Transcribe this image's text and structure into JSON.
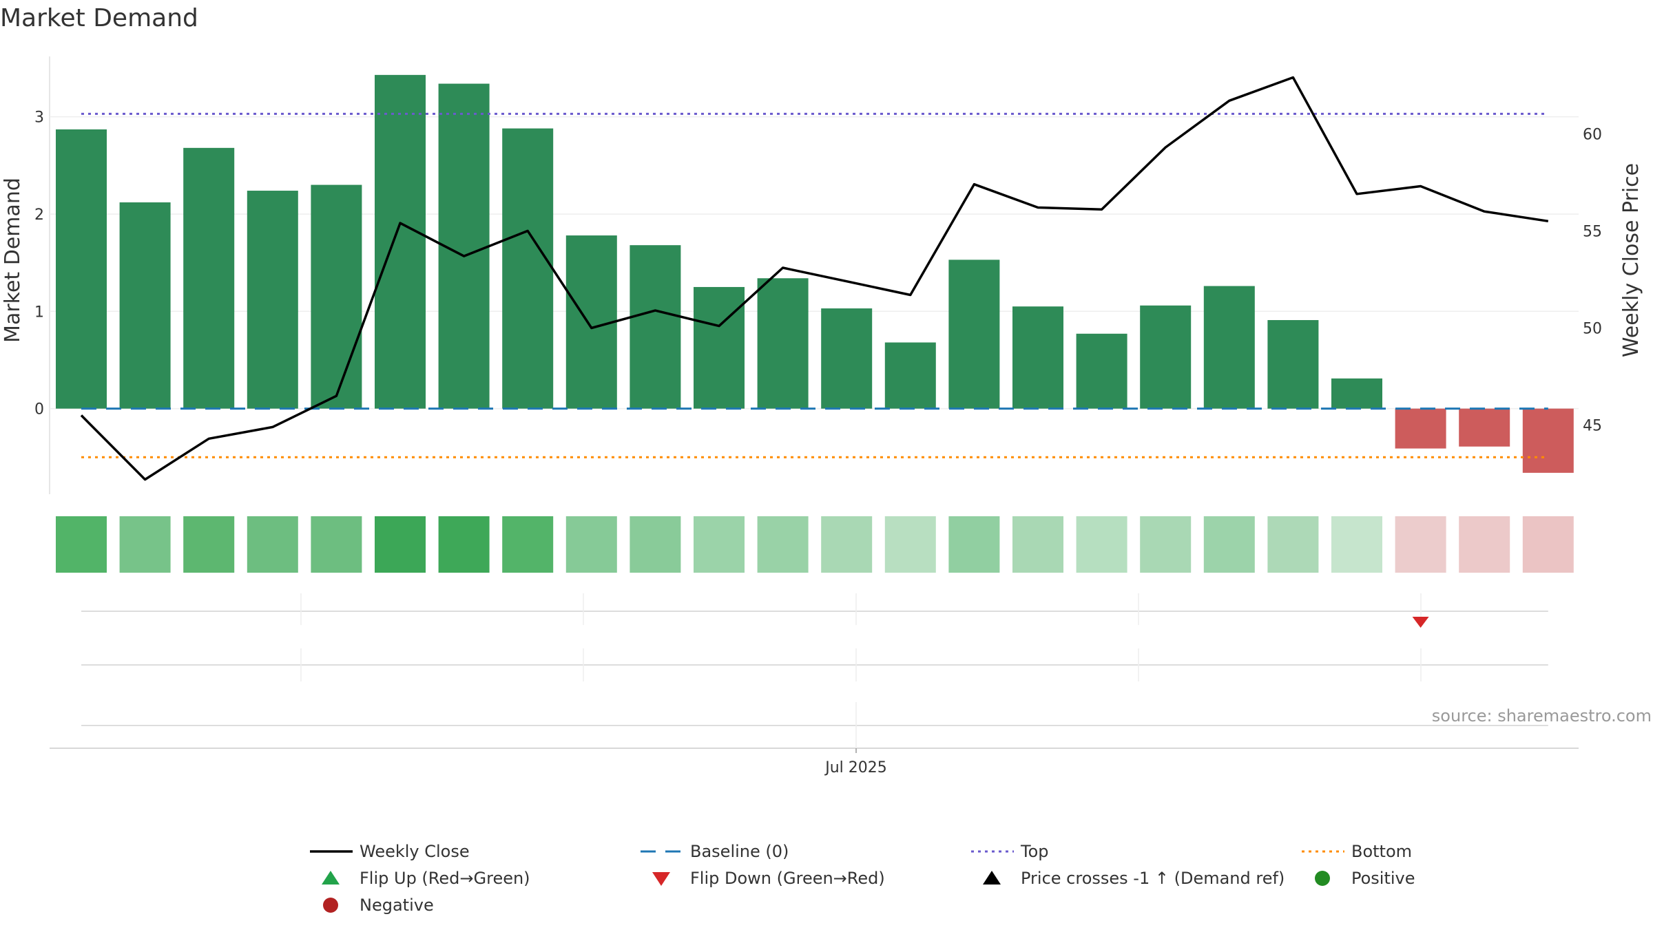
{
  "chart_data": {
    "type": "bar",
    "title": "Market Demand",
    "ylabel": "Market Demand",
    "y2label": "Weekly Close Price",
    "ylim": [
      -0.88,
      3.62
    ],
    "y2lim": [
      41.44,
      63.98
    ],
    "yticks": [
      "3",
      "2",
      "1",
      "0"
    ],
    "yticks_values": [
      3,
      2,
      1,
      0
    ],
    "y2ticks": [
      "60",
      "55",
      "50",
      "45"
    ],
    "y2ticks_values": [
      60,
      55,
      50,
      45
    ],
    "x_tick_label": "Jul 2025",
    "week_count": 24,
    "series": [
      {
        "name": "Market Demand",
        "type": "bar",
        "values": [
          2.87,
          2.12,
          2.68,
          2.24,
          2.3,
          3.43,
          3.34,
          2.88,
          1.78,
          1.68,
          1.25,
          1.34,
          1.03,
          0.68,
          1.53,
          1.05,
          0.77,
          1.06,
          1.26,
          0.91,
          0.31,
          -0.41,
          -0.39,
          -0.66
        ],
        "positive_color": "#2e8b57",
        "negative_color": "#cd5c5c"
      },
      {
        "name": "Weekly Close",
        "type": "line",
        "axis": "right",
        "values": [
          45.5,
          42.2,
          44.3,
          44.9,
          46.5,
          55.4,
          53.7,
          55.0,
          50.0,
          50.9,
          50.1,
          53.1,
          52.4,
          51.7,
          57.4,
          56.2,
          56.1,
          59.3,
          61.7,
          62.9,
          56.9,
          57.3,
          56.0,
          55.5
        ],
        "color": "#000000"
      }
    ],
    "reference_lines": {
      "baseline": 0,
      "top": 3.03,
      "bottom": -0.5
    },
    "heat_colors": [
      "#52b468",
      "#77c389",
      "#5db770",
      "#6dbe80",
      "#6dbe80",
      "#3ca757",
      "#3ea858",
      "#53b469",
      "#86ca97",
      "#89cb99",
      "#9bd3a9",
      "#99d2a7",
      "#a9d8b4",
      "#b8dfc1",
      "#91cfa1",
      "#a9d8b4",
      "#b6dfc0",
      "#a9d8b4",
      "#9cd3aa",
      "#add9b7",
      "#c6e5cd",
      "#eccccc",
      "#ecc9c9",
      "#ebc4c4"
    ],
    "flip_down_week": 21,
    "legend": [
      {
        "label": "Weekly Close",
        "marker": "line",
        "color": "#000000"
      },
      {
        "label": "Baseline (0)",
        "marker": "dash",
        "color": "#1f77b4"
      },
      {
        "label": "Top",
        "marker": "dot",
        "color": "#6a5acd"
      },
      {
        "label": "Bottom",
        "marker": "dot",
        "color": "#ff8c00"
      },
      {
        "label": "Flip Up (Red→Green)",
        "marker": "triangle-up",
        "color": "#22a34a"
      },
      {
        "label": "Flip Down (Green→Red)",
        "marker": "triangle-down",
        "color": "#d62728"
      },
      {
        "label": "Price crosses -1 ↑ (Demand ref)",
        "marker": "triangle-up",
        "color": "#000000"
      },
      {
        "label": "Positive",
        "marker": "circle",
        "color": "#228b22"
      },
      {
        "label": "Negative",
        "marker": "circle",
        "color": "#b22222"
      }
    ],
    "legend_placement": "bottom",
    "grid": true
  },
  "source_text": "source: sharemaestro.com"
}
